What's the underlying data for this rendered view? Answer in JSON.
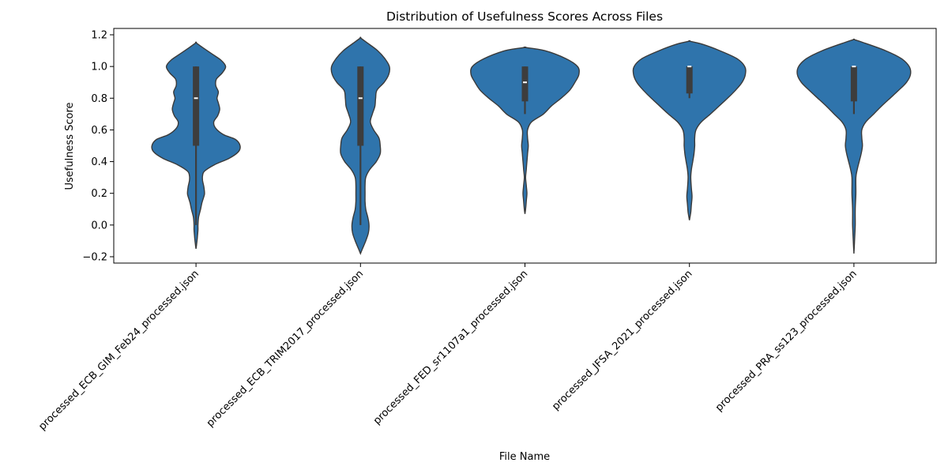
{
  "chart_data": {
    "type": "violin",
    "title": "Distribution of Usefulness Scores Across Files",
    "xlabel": "File Name",
    "ylabel": "Usefulness Score",
    "ylim": [
      -0.24,
      1.24
    ],
    "yticks": [
      -0.2,
      0.0,
      0.2,
      0.4,
      0.6,
      0.8,
      1.0,
      1.2
    ],
    "ytick_labels": [
      "−0.2",
      "0.0",
      "0.2",
      "0.4",
      "0.6",
      "0.8",
      "1.0",
      "1.2"
    ],
    "grid": false,
    "legend": "none",
    "colors": {
      "fill": "#2f74ac",
      "edge": "#3a3a3a",
      "box": "#3d3d3d",
      "median": "#ffffff"
    },
    "categories": [
      "processed_ECB_GIM_Feb24_processed.json",
      "processed_ECB_TRIM2017_processed.json",
      "processed_FED_sr1107a1_processed.json",
      "processed_JFSA_2021_processed.json",
      "processed_PRA_ss123_processed.json"
    ],
    "violins": [
      {
        "min": -0.15,
        "max": 1.15,
        "box": {
          "q1": 0.5,
          "median": 0.8,
          "q3": 1.0,
          "whisker_low": 0.0,
          "whisker_high": 1.0
        },
        "profile": [
          [
            -0.15,
            0
          ],
          [
            -0.12,
            0.01
          ],
          [
            -0.08,
            0.02
          ],
          [
            -0.03,
            0.03
          ],
          [
            0.0,
            0.03
          ],
          [
            0.05,
            0.04
          ],
          [
            0.1,
            0.07
          ],
          [
            0.14,
            0.09
          ],
          [
            0.18,
            0.12
          ],
          [
            0.2,
            0.13
          ],
          [
            0.24,
            0.12
          ],
          [
            0.28,
            0.1
          ],
          [
            0.31,
            0.1
          ],
          [
            0.34,
            0.13
          ],
          [
            0.38,
            0.28
          ],
          [
            0.42,
            0.5
          ],
          [
            0.46,
            0.64
          ],
          [
            0.5,
            0.67
          ],
          [
            0.54,
            0.6
          ],
          [
            0.57,
            0.42
          ],
          [
            0.61,
            0.3
          ],
          [
            0.65,
            0.27
          ],
          [
            0.69,
            0.33
          ],
          [
            0.73,
            0.36
          ],
          [
            0.77,
            0.34
          ],
          [
            0.8,
            0.32
          ],
          [
            0.84,
            0.34
          ],
          [
            0.88,
            0.3
          ],
          [
            0.92,
            0.31
          ],
          [
            0.96,
            0.4
          ],
          [
            1.0,
            0.45
          ],
          [
            1.04,
            0.38
          ],
          [
            1.08,
            0.24
          ],
          [
            1.12,
            0.1
          ],
          [
            1.15,
            0
          ]
        ]
      },
      {
        "min": -0.18,
        "max": 1.18,
        "box": {
          "q1": 0.5,
          "median": 0.8,
          "q3": 1.0,
          "whisker_low": 0.0,
          "whisker_high": 1.0
        },
        "profile": [
          [
            -0.18,
            0
          ],
          [
            -0.15,
            0.03
          ],
          [
            -0.1,
            0.08
          ],
          [
            -0.05,
            0.12
          ],
          [
            0.0,
            0.13
          ],
          [
            0.05,
            0.11
          ],
          [
            0.1,
            0.08
          ],
          [
            0.15,
            0.07
          ],
          [
            0.2,
            0.07
          ],
          [
            0.25,
            0.07
          ],
          [
            0.3,
            0.08
          ],
          [
            0.35,
            0.14
          ],
          [
            0.4,
            0.24
          ],
          [
            0.45,
            0.3
          ],
          [
            0.5,
            0.3
          ],
          [
            0.55,
            0.28
          ],
          [
            0.6,
            0.2
          ],
          [
            0.65,
            0.15
          ],
          [
            0.7,
            0.18
          ],
          [
            0.75,
            0.22
          ],
          [
            0.8,
            0.23
          ],
          [
            0.85,
            0.25
          ],
          [
            0.9,
            0.36
          ],
          [
            0.95,
            0.43
          ],
          [
            1.0,
            0.44
          ],
          [
            1.05,
            0.37
          ],
          [
            1.1,
            0.26
          ],
          [
            1.15,
            0.1
          ],
          [
            1.18,
            0
          ]
        ]
      },
      {
        "min": 0.07,
        "max": 1.12,
        "box": {
          "q1": 0.78,
          "median": 0.9,
          "q3": 1.0,
          "whisker_low": 0.7,
          "whisker_high": 1.0
        },
        "profile": [
          [
            0.07,
            0
          ],
          [
            0.1,
            0.01
          ],
          [
            0.15,
            0.02
          ],
          [
            0.2,
            0.03
          ],
          [
            0.25,
            0.02
          ],
          [
            0.3,
            0.01
          ],
          [
            0.35,
            0.02
          ],
          [
            0.4,
            0.03
          ],
          [
            0.45,
            0.04
          ],
          [
            0.5,
            0.05
          ],
          [
            0.55,
            0.04
          ],
          [
            0.6,
            0.04
          ],
          [
            0.65,
            0.1
          ],
          [
            0.7,
            0.28
          ],
          [
            0.75,
            0.4
          ],
          [
            0.8,
            0.55
          ],
          [
            0.85,
            0.68
          ],
          [
            0.9,
            0.76
          ],
          [
            0.95,
            0.82
          ],
          [
            1.0,
            0.8
          ],
          [
            1.05,
            0.62
          ],
          [
            1.1,
            0.3
          ],
          [
            1.12,
            0
          ]
        ]
      },
      {
        "min": 0.03,
        "max": 1.16,
        "box": {
          "q1": 0.83,
          "median": 1.0,
          "q3": 1.0,
          "whisker_low": 0.8,
          "whisker_high": 1.0
        },
        "profile": [
          [
            0.03,
            0
          ],
          [
            0.08,
            0.02
          ],
          [
            0.13,
            0.03
          ],
          [
            0.18,
            0.04
          ],
          [
            0.23,
            0.03
          ],
          [
            0.3,
            0.02
          ],
          [
            0.35,
            0.03
          ],
          [
            0.4,
            0.05
          ],
          [
            0.45,
            0.07
          ],
          [
            0.5,
            0.08
          ],
          [
            0.55,
            0.08
          ],
          [
            0.6,
            0.1
          ],
          [
            0.65,
            0.18
          ],
          [
            0.7,
            0.32
          ],
          [
            0.75,
            0.45
          ],
          [
            0.8,
            0.58
          ],
          [
            0.85,
            0.7
          ],
          [
            0.9,
            0.8
          ],
          [
            0.95,
            0.85
          ],
          [
            1.0,
            0.84
          ],
          [
            1.05,
            0.72
          ],
          [
            1.1,
            0.46
          ],
          [
            1.14,
            0.2
          ],
          [
            1.16,
            0
          ]
        ]
      },
      {
        "min": -0.18,
        "max": 1.17,
        "box": {
          "q1": 0.78,
          "median": 1.0,
          "q3": 1.0,
          "whisker_low": 0.7,
          "whisker_high": 1.0
        },
        "profile": [
          [
            -0.18,
            0
          ],
          [
            -0.1,
            0.01
          ],
          [
            0.0,
            0.02
          ],
          [
            0.1,
            0.02
          ],
          [
            0.2,
            0.03
          ],
          [
            0.3,
            0.03
          ],
          [
            0.35,
            0.05
          ],
          [
            0.4,
            0.08
          ],
          [
            0.45,
            0.11
          ],
          [
            0.5,
            0.13
          ],
          [
            0.55,
            0.12
          ],
          [
            0.6,
            0.12
          ],
          [
            0.65,
            0.18
          ],
          [
            0.7,
            0.3
          ],
          [
            0.75,
            0.42
          ],
          [
            0.8,
            0.55
          ],
          [
            0.85,
            0.68
          ],
          [
            0.9,
            0.8
          ],
          [
            0.95,
            0.86
          ],
          [
            1.0,
            0.84
          ],
          [
            1.05,
            0.72
          ],
          [
            1.1,
            0.48
          ],
          [
            1.15,
            0.15
          ],
          [
            1.17,
            0
          ]
        ]
      }
    ]
  }
}
